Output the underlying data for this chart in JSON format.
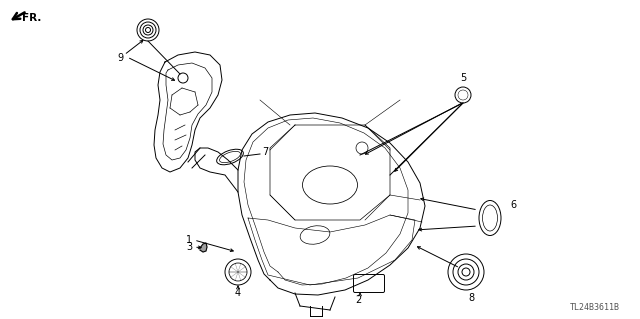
{
  "background_color": "#ffffff",
  "line_color": "#000000",
  "watermark": "TL24B3611B",
  "label_fontsize": 7,
  "watermark_fontsize": 6
}
